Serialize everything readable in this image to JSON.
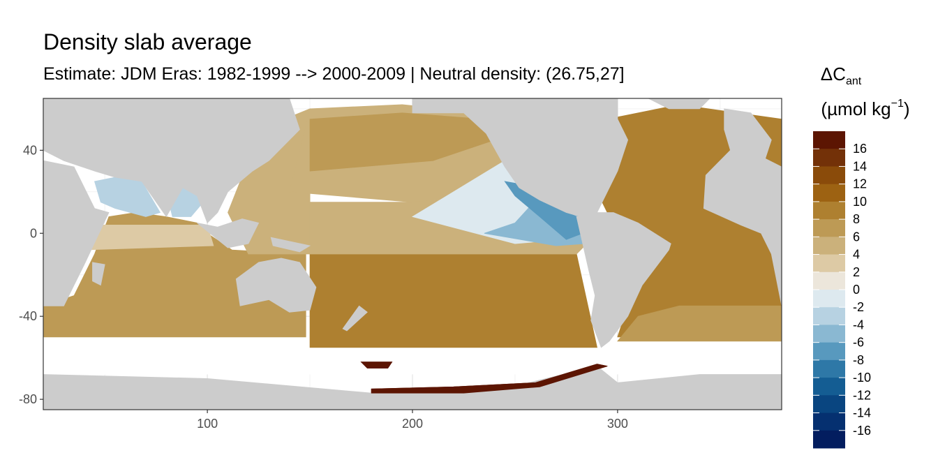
{
  "chart_data": {
    "type": "heatmap",
    "title": "Density slab average",
    "subtitle": "Estimate: JDM Eras: 1982-1999 --> 2000-2009 | Neutral density: (26.75,27]",
    "xlabel": "",
    "ylabel": "",
    "xlim": [
      20,
      380
    ],
    "ylim": [
      -85,
      65
    ],
    "x_ticks": [
      100,
      200,
      300
    ],
    "y_ticks": [
      40,
      0,
      -40,
      -80
    ],
    "grid": true,
    "legend": {
      "title_main": "ΔC",
      "title_sub": "ant",
      "units_prefix": "(µmol kg",
      "units_sup": "−1",
      "units_suffix": ")",
      "placement": "right",
      "breaks": [
        17,
        15,
        13,
        11,
        9,
        7,
        5,
        3,
        1,
        -1,
        -3,
        -5,
        -7,
        -9,
        -11,
        -13,
        -15,
        -17
      ],
      "labels": [
        "16",
        "14",
        "12",
        "10",
        "8",
        "6",
        "4",
        "2",
        "0",
        "-2",
        "-4",
        "-6",
        "-8",
        "-10",
        "-12",
        "-14",
        "-16"
      ],
      "colors": [
        "#5c1502",
        "#733108",
        "#8a4b0a",
        "#9d6212",
        "#ae8030",
        "#bd9a55",
        "#cbb17b",
        "#ddcaa5",
        "#ece6db",
        "#dde9ef",
        "#b7d2e2",
        "#8ab8d2",
        "#5899be",
        "#2e78a7",
        "#145d93",
        "#094580",
        "#053070",
        "#031d5f"
      ]
    },
    "land_color": "#cccccc",
    "regions": [
      {
        "name": "Indian Ocean",
        "value": 5,
        "poly": [
          [
            30,
            -50
          ],
          [
            148,
            -50
          ],
          [
            148,
            -10
          ],
          [
            112,
            -8
          ],
          [
            100,
            0
          ],
          [
            95,
            5
          ],
          [
            80,
            8
          ],
          [
            65,
            10
          ],
          [
            52,
            8
          ],
          [
            45,
            -10
          ],
          [
            35,
            -30
          ],
          [
            20,
            -35
          ],
          [
            20,
            -50
          ]
        ]
      },
      {
        "name": "Arabian Sea",
        "value": -4,
        "poly": [
          [
            45,
            25
          ],
          [
            55,
            27
          ],
          [
            68,
            25
          ],
          [
            77,
            10
          ],
          [
            70,
            8
          ],
          [
            55,
            12
          ],
          [
            48,
            15
          ]
        ]
      },
      {
        "name": "Bay of Bengal",
        "value": -5,
        "poly": [
          [
            80,
            20
          ],
          [
            92,
            23
          ],
          [
            98,
            15
          ],
          [
            92,
            8
          ],
          [
            83,
            8
          ]
        ]
      },
      {
        "name": "Equatorial Indian",
        "value": 1,
        "poly": [
          [
            40,
            4
          ],
          [
            100,
            4
          ],
          [
            103,
            -6
          ],
          [
            40,
            -8
          ]
        ]
      },
      {
        "name": "Western Pacific",
        "value": 3,
        "poly": [
          [
            120,
            -10
          ],
          [
            150,
            -10
          ],
          [
            150,
            60
          ],
          [
            125,
            50
          ],
          [
            118,
            30
          ],
          [
            110,
            10
          ]
        ]
      },
      {
        "name": "North Pacific",
        "value": 3,
        "poly": [
          [
            140,
            20
          ],
          [
            150,
            60
          ],
          [
            195,
            62
          ],
          [
            235,
            58
          ],
          [
            250,
            45
          ],
          [
            250,
            20
          ],
          [
            200,
            15
          ]
        ]
      },
      {
        "name": "Kuroshio band",
        "value": 5,
        "poly": [
          [
            150,
            30
          ],
          [
            210,
            35
          ],
          [
            240,
            45
          ],
          [
            235,
            55
          ],
          [
            195,
            58
          ],
          [
            150,
            55
          ]
        ]
      },
      {
        "name": "South Pacific",
        "value": 7,
        "poly": [
          [
            150,
            -10
          ],
          [
            280,
            -10
          ],
          [
            290,
            -55
          ],
          [
            150,
            -55
          ]
        ]
      },
      {
        "name": "Tropical Pacific",
        "value": 3,
        "poly": [
          [
            150,
            -10
          ],
          [
            150,
            15
          ],
          [
            200,
            15
          ],
          [
            260,
            20
          ],
          [
            285,
            -5
          ],
          [
            280,
            -10
          ]
        ]
      },
      {
        "name": "East Pacific Pool",
        "value": -3,
        "poly": [
          [
            200,
            8
          ],
          [
            245,
            35
          ],
          [
            260,
            30
          ],
          [
            280,
            12
          ],
          [
            285,
            -2
          ],
          [
            250,
            -5
          ]
        ]
      },
      {
        "name": "East Pacific Core",
        "value": -7,
        "poly": [
          [
            235,
            0
          ],
          [
            250,
            5
          ],
          [
            262,
            18
          ],
          [
            282,
            10
          ],
          [
            284,
            -5
          ],
          [
            270,
            -6
          ]
        ]
      },
      {
        "name": "Mexican Coast",
        "value": -9,
        "poly": [
          [
            245,
            25
          ],
          [
            262,
            22
          ],
          [
            272,
            12
          ],
          [
            280,
            8
          ],
          [
            283,
            0
          ],
          [
            275,
            -3
          ],
          [
            262,
            8
          ],
          [
            250,
            18
          ]
        ]
      },
      {
        "name": "Atlantic",
        "value": 7,
        "poly": [
          [
            300,
            -50
          ],
          [
            380,
            -50
          ],
          [
            380,
            55
          ],
          [
            330,
            62
          ],
          [
            295,
            55
          ],
          [
            290,
            20
          ],
          [
            300,
            0
          ],
          [
            310,
            -20
          ]
        ]
      },
      {
        "name": "South Atlantic band",
        "value": 5,
        "poly": [
          [
            300,
            -52
          ],
          [
            380,
            -52
          ],
          [
            380,
            -35
          ],
          [
            330,
            -35
          ],
          [
            310,
            -40
          ]
        ]
      },
      {
        "name": "Ross Sea",
        "value": 17,
        "poly": [
          [
            175,
            -62
          ],
          [
            190,
            -62
          ],
          [
            188,
            -65
          ],
          [
            178,
            -65
          ]
        ]
      },
      {
        "name": "Antarctic Shelf",
        "value": 17,
        "poly": [
          [
            180,
            -75
          ],
          [
            220,
            -74
          ],
          [
            260,
            -72
          ],
          [
            290,
            -63
          ],
          [
            295,
            -64
          ],
          [
            262,
            -74
          ],
          [
            225,
            -77
          ],
          [
            180,
            -77
          ]
        ]
      }
    ],
    "land": [
      {
        "name": "Africa",
        "poly": [
          [
            20,
            35
          ],
          [
            35,
            32
          ],
          [
            45,
            12
          ],
          [
            52,
            10
          ],
          [
            40,
            -15
          ],
          [
            35,
            -25
          ],
          [
            30,
            -35
          ],
          [
            20,
            -35
          ]
        ]
      },
      {
        "name": "Eurasia",
        "poly": [
          [
            20,
            65
          ],
          [
            140,
            65
          ],
          [
            145,
            50
          ],
          [
            130,
            35
          ],
          [
            122,
            30
          ],
          [
            110,
            20
          ],
          [
            105,
            10
          ],
          [
            100,
            5
          ],
          [
            95,
            18
          ],
          [
            88,
            22
          ],
          [
            80,
            15
          ],
          [
            75,
            20
          ],
          [
            68,
            25
          ],
          [
            55,
            27
          ],
          [
            45,
            30
          ],
          [
            30,
            35
          ],
          [
            20,
            40
          ]
        ]
      },
      {
        "name": "Indian subcontinent",
        "poly": [
          [
            68,
            25
          ],
          [
            80,
            8
          ],
          [
            88,
            22
          ],
          [
            75,
            28
          ]
        ]
      },
      {
        "name": "Madagascar",
        "poly": [
          [
            44,
            -14
          ],
          [
            50,
            -15
          ],
          [
            48,
            -25
          ],
          [
            44,
            -23
          ]
        ]
      },
      {
        "name": "Maritime SE Asia",
        "poly": [
          [
            95,
            5
          ],
          [
            110,
            -7
          ],
          [
            120,
            -5
          ],
          [
            125,
            5
          ],
          [
            117,
            7
          ],
          [
            105,
            3
          ]
        ]
      },
      {
        "name": "New Guinea",
        "poly": [
          [
            131,
            -2
          ],
          [
            150,
            -6
          ],
          [
            145,
            -9
          ],
          [
            132,
            -6
          ]
        ]
      },
      {
        "name": "Australia",
        "poly": [
          [
            114,
            -22
          ],
          [
            125,
            -14
          ],
          [
            136,
            -12
          ],
          [
            145,
            -14
          ],
          [
            153,
            -26
          ],
          [
            150,
            -37
          ],
          [
            140,
            -38
          ],
          [
            130,
            -32
          ],
          [
            116,
            -35
          ]
        ]
      },
      {
        "name": "New Zealand",
        "poly": [
          [
            166,
            -46
          ],
          [
            174,
            -35
          ],
          [
            178,
            -38
          ],
          [
            168,
            -47
          ]
        ]
      },
      {
        "name": "North America",
        "poly": [
          [
            200,
            65
          ],
          [
            200,
            58
          ],
          [
            225,
            58
          ],
          [
            236,
            48
          ],
          [
            245,
            32
          ],
          [
            252,
            22
          ],
          [
            262,
            16
          ],
          [
            275,
            10
          ],
          [
            282,
            8
          ],
          [
            290,
            10
          ],
          [
            300,
            30
          ],
          [
            305,
            45
          ],
          [
            300,
            55
          ],
          [
            300,
            65
          ]
        ]
      },
      {
        "name": "Greenland",
        "poly": [
          [
            315,
            65
          ],
          [
            345,
            65
          ],
          [
            340,
            60
          ],
          [
            325,
            60
          ]
        ]
      },
      {
        "name": "South America",
        "poly": [
          [
            280,
            8
          ],
          [
            283,
            -5
          ],
          [
            286,
            -18
          ],
          [
            289,
            -30
          ],
          [
            287,
            -42
          ],
          [
            292,
            -55
          ],
          [
            296,
            -52
          ],
          [
            305,
            -40
          ],
          [
            312,
            -25
          ],
          [
            325,
            -8
          ],
          [
            326,
            -5
          ],
          [
            310,
            5
          ],
          [
            298,
            10
          ],
          [
            290,
            10
          ]
        ]
      },
      {
        "name": "Europe-Africa East",
        "poly": [
          [
            352,
            60
          ],
          [
            365,
            58
          ],
          [
            375,
            45
          ],
          [
            372,
            36
          ],
          [
            380,
            32
          ],
          [
            380,
            -35
          ],
          [
            375,
            -10
          ],
          [
            370,
            0
          ],
          [
            360,
            4
          ],
          [
            342,
            12
          ],
          [
            343,
            28
          ],
          [
            355,
            40
          ],
          [
            352,
            50
          ]
        ]
      },
      {
        "name": "Antarctica",
        "poly": [
          [
            20,
            -68
          ],
          [
            100,
            -70
          ],
          [
            180,
            -77
          ],
          [
            240,
            -76
          ],
          [
            290,
            -64
          ],
          [
            300,
            -72
          ],
          [
            340,
            -68
          ],
          [
            380,
            -68
          ],
          [
            380,
            -85
          ],
          [
            20,
            -85
          ]
        ]
      }
    ],
    "southern_gap": {
      "ymin": -68,
      "ymax": -50
    }
  }
}
